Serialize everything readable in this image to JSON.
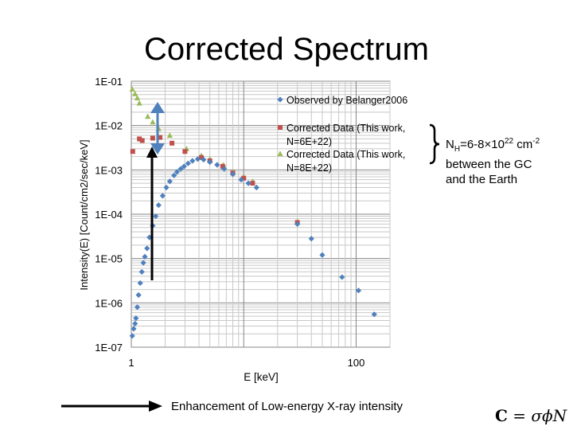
{
  "slide": {
    "title": "Corrected Spectrum",
    "annotation": {
      "brace": "}",
      "nh_prefix": "N",
      "nh_sub": "H",
      "nh_range": "=6-8×10",
      "nh_exp": "22",
      "nh_unit": " cm",
      "nh_unit_exp": "-2",
      "line2": "between the GC",
      "line3": "and the Earth"
    },
    "caption": "Enhancement of Low-energy X-ray intensity",
    "formula": {
      "lhs": "C",
      "rhs": " = σϕN"
    }
  },
  "chart_data": {
    "type": "scatter",
    "title": "",
    "xlabel": "E [keV]",
    "ylabel": "Intensity(E) [Count/cm2/sec/keV]",
    "xscale": "log",
    "yscale": "log",
    "xlim": [
      1,
      200
    ],
    "ylim": [
      1e-07,
      0.1
    ],
    "x_tick_labels": [
      {
        "value": 1,
        "label": "1"
      },
      {
        "value": 100,
        "label": "100"
      }
    ],
    "y_tick_labels": [
      {
        "value": 0.1,
        "label": "1E-01"
      },
      {
        "value": 0.01,
        "label": "1E-02"
      },
      {
        "value": 0.001,
        "label": "1E-03"
      },
      {
        "value": 0.0001,
        "label": "1E-04"
      },
      {
        "value": 1e-05,
        "label": "1E-05"
      },
      {
        "value": 1e-06,
        "label": "1E-06"
      },
      {
        "value": 1e-07,
        "label": "1E-07"
      }
    ],
    "grid": true,
    "legend_position": "top-right",
    "series": [
      {
        "name": "Observed by Belanger2006",
        "marker": "diamond",
        "color": "#4F81BD",
        "points": [
          {
            "x": 1.02,
            "y": 1.8e-07
          },
          {
            "x": 1.05,
            "y": 2.6e-07
          },
          {
            "x": 1.08,
            "y": 3.4e-07
          },
          {
            "x": 1.1,
            "y": 4.5e-07
          },
          {
            "x": 1.13,
            "y": 8e-07
          },
          {
            "x": 1.16,
            "y": 1.5e-06
          },
          {
            "x": 1.2,
            "y": 2.8e-06
          },
          {
            "x": 1.24,
            "y": 5e-06
          },
          {
            "x": 1.28,
            "y": 8e-06
          },
          {
            "x": 1.32,
            "y": 1.1e-05
          },
          {
            "x": 1.38,
            "y": 1.7e-05
          },
          {
            "x": 1.45,
            "y": 3e-05
          },
          {
            "x": 1.55,
            "y": 5.5e-05
          },
          {
            "x": 1.65,
            "y": 9e-05
          },
          {
            "x": 1.75,
            "y": 0.00016
          },
          {
            "x": 1.9,
            "y": 0.00026
          },
          {
            "x": 2.05,
            "y": 0.0004
          },
          {
            "x": 2.2,
            "y": 0.00055
          },
          {
            "x": 2.4,
            "y": 0.00075
          },
          {
            "x": 2.55,
            "y": 0.0009
          },
          {
            "x": 2.75,
            "y": 0.00105
          },
          {
            "x": 2.95,
            "y": 0.0012
          },
          {
            "x": 3.2,
            "y": 0.0014
          },
          {
            "x": 3.5,
            "y": 0.0016
          },
          {
            "x": 3.9,
            "y": 0.00175
          },
          {
            "x": 4.4,
            "y": 0.0017
          },
          {
            "x": 5.0,
            "y": 0.0015
          },
          {
            "x": 5.8,
            "y": 0.0013
          },
          {
            "x": 6.7,
            "y": 0.00105
          },
          {
            "x": 8.0,
            "y": 0.0008
          },
          {
            "x": 9.5,
            "y": 0.0006
          },
          {
            "x": 11.0,
            "y": 0.0005
          },
          {
            "x": 13.0,
            "y": 0.0004
          },
          {
            "x": 30.0,
            "y": 6e-05
          },
          {
            "x": 40.0,
            "y": 2.8e-05
          },
          {
            "x": 50.0,
            "y": 1.2e-05
          },
          {
            "x": 75.0,
            "y": 3.8e-06
          },
          {
            "x": 105.0,
            "y": 1.9e-06
          },
          {
            "x": 145.0,
            "y": 5.5e-07
          }
        ]
      },
      {
        "name": "Corrected Data (This work, N=6E+22)",
        "marker": "square",
        "color": "#C0504D",
        "points": [
          {
            "x": 1.03,
            "y": 0.0026
          },
          {
            "x": 1.18,
            "y": 0.005
          },
          {
            "x": 1.25,
            "y": 0.0046
          },
          {
            "x": 1.55,
            "y": 0.0052
          },
          {
            "x": 1.8,
            "y": 0.0054
          },
          {
            "x": 2.3,
            "y": 0.004
          },
          {
            "x": 3.0,
            "y": 0.0026
          },
          {
            "x": 4.2,
            "y": 0.0019
          },
          {
            "x": 5.0,
            "y": 0.0016
          },
          {
            "x": 6.5,
            "y": 0.0012
          },
          {
            "x": 8.0,
            "y": 0.00085
          },
          {
            "x": 10.0,
            "y": 0.00065
          },
          {
            "x": 12.0,
            "y": 0.0005
          },
          {
            "x": 30.0,
            "y": 6.5e-05
          }
        ]
      },
      {
        "name": "Corrected Data (This work, N=8E+22)",
        "marker": "triangle",
        "color": "#9BBB59",
        "points": [
          {
            "x": 1.02,
            "y": 0.066
          },
          {
            "x": 1.08,
            "y": 0.052
          },
          {
            "x": 1.13,
            "y": 0.042
          },
          {
            "x": 1.18,
            "y": 0.032
          },
          {
            "x": 1.4,
            "y": 0.016
          },
          {
            "x": 1.55,
            "y": 0.012
          },
          {
            "x": 1.75,
            "y": 0.0085
          },
          {
            "x": 2.2,
            "y": 0.006
          },
          {
            "x": 3.1,
            "y": 0.003
          },
          {
            "x": 4.2,
            "y": 0.0021
          },
          {
            "x": 5.0,
            "y": 0.00175
          },
          {
            "x": 6.6,
            "y": 0.0013
          },
          {
            "x": 8.0,
            "y": 0.0009
          },
          {
            "x": 10.0,
            "y": 0.0007
          },
          {
            "x": 12.0,
            "y": 0.00055
          },
          {
            "x": 30.0,
            "y": 6.8e-05
          }
        ]
      }
    ]
  }
}
